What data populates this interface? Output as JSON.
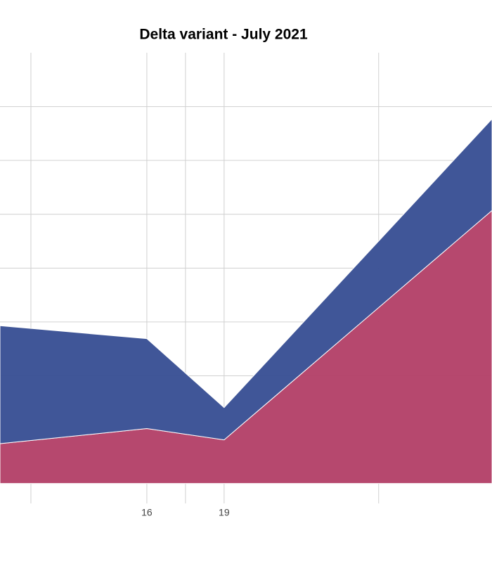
{
  "chart_data": {
    "type": "stacked_area",
    "title": "Delta variant - July 2021",
    "x": [
      10.3,
      16,
      19,
      29.4
    ],
    "series": [
      {
        "color": "#b5446b",
        "values": [
          0.74,
          1.02,
          0.81,
          5.07
        ]
      },
      {
        "color": "#3c5396",
        "values": [
          2.19,
          1.67,
          0.6,
          1.7
        ]
      }
    ],
    "xlim": [
      10.3,
      29.4
    ],
    "xticks": [
      16,
      19
    ],
    "x_minor_grid": [
      11.5,
      17.5,
      25
    ],
    "ylim": [
      -0.37,
      8.0
    ],
    "ygrid": [
      0,
      1,
      2,
      3,
      4,
      5,
      6,
      7
    ],
    "grid": true
  }
}
